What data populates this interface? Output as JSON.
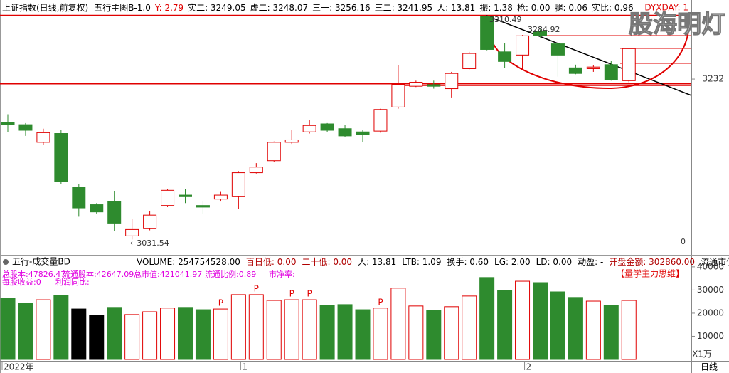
{
  "header": {
    "title": "上证指数(日线,前复权)",
    "indicator": "五行主图B-1.0",
    "stats": [
      {
        "text": "Y: 2.79",
        "color": "#e00000"
      },
      {
        "text": "实二: 3249.05",
        "color": "#000000"
      },
      {
        "text": "虚二: 3248.07",
        "color": "#000000"
      },
      {
        "text": "三一: 3256.16",
        "color": "#000000"
      },
      {
        "text": "三二: 3241.95",
        "color": "#000000"
      },
      {
        "text": "人: 13.81",
        "color": "#000000"
      },
      {
        "text": "振: 1.38",
        "color": "#000000"
      },
      {
        "text": "枪: 0.00",
        "color": "#000000"
      },
      {
        "text": "腿: 0.06",
        "color": "#000000"
      },
      {
        "text": "实比: 0.96",
        "color": "#000000"
      }
    ],
    "right_label": "DYXDAY: 1",
    "watermark": "股海明灯"
  },
  "chart_data": [
    {
      "type": "candlestick",
      "up_color": "#e00000",
      "down_color": "#2e8b2e",
      "open": [
        3178,
        3175,
        3153,
        3164,
        3097,
        3075,
        3079,
        3036,
        3045,
        3074,
        3087,
        3074,
        3082,
        3085,
        3115,
        3130,
        3153,
        3166,
        3176,
        3170,
        3166,
        3167,
        3197,
        3223,
        3225,
        3220,
        3245,
        3310,
        3266,
        3262,
        3292,
        3276,
        3246,
        3245,
        3250,
        3230
      ],
      "high": [
        3188,
        3177,
        3170,
        3168,
        3101,
        3077,
        3092,
        3057,
        3067,
        3095,
        3095,
        3080,
        3091,
        3117,
        3127,
        3154,
        3168,
        3181,
        3177,
        3175,
        3168,
        3195,
        3249,
        3230,
        3230,
        3241,
        3266,
        3310.49,
        3277,
        3287,
        3294,
        3279,
        3250,
        3249,
        3255,
        3271
      ],
      "low": [
        3166,
        3161,
        3150,
        3101,
        3060,
        3064,
        3042,
        3031.54,
        3043,
        3072,
        3077,
        3064,
        3079,
        3070,
        3114,
        3128,
        3151,
        3164,
        3166,
        3160,
        3153,
        3165,
        3195,
        3222,
        3220,
        3209,
        3244,
        3268,
        3246,
        3244,
        3284,
        3235,
        3238,
        3241,
        3230,
        3228
      ],
      "close": [
        3175,
        3168,
        3165,
        3104,
        3071,
        3066,
        3052,
        3044,
        3062,
        3093,
        3085,
        3072,
        3087,
        3115,
        3122,
        3153,
        3156,
        3174,
        3168,
        3161,
        3163,
        3194,
        3225,
        3228,
        3223,
        3239,
        3264,
        3269,
        3254,
        3286,
        3286,
        3262,
        3239,
        3247,
        3231,
        3270
      ],
      "ylim": [
        3015,
        3313
      ],
      "yticks": [
        3232
      ],
      "annotations": [
        "3310.49",
        "3284.92",
        "←3031.54",
        "0"
      ]
    },
    {
      "type": "bar",
      "title": "五行-成交量BD",
      "stats": [
        {
          "text": "VOLUME: 254754528.00",
          "color": "#000000"
        },
        {
          "text": "百日低: 0.00",
          "color": "#b00000"
        },
        {
          "text": "二十低: 0.00",
          "color": "#b00000"
        },
        {
          "text": "人: 13.81",
          "color": "#000000"
        },
        {
          "text": "LTB: 1.09",
          "color": "#000000"
        },
        {
          "text": "换手: 0.60",
          "color": "#000000"
        },
        {
          "text": "LG: 2.00",
          "color": "#000000"
        },
        {
          "text": "LD: 0.00",
          "color": "#000000"
        },
        {
          "text": "动盈: -",
          "color": "#000000"
        },
        {
          "text": "开盘金额: 302860.00",
          "color": "#b00000"
        },
        {
          "text": "流通市值: ",
          "color": "#000000"
        }
      ],
      "fundamentals": [
        [
          "总股本:47826.47",
          "流通股本:42647.09",
          "总市值:421041.97",
          "流通比例:0.89",
          "市净率:"
        ],
        [
          "每股收益:0",
          "利润同比:"
        ]
      ],
      "right_label": "【量学主力思维】",
      "categories": [
        "2022年",
        null,
        null,
        null,
        null,
        null,
        null,
        null,
        null,
        null,
        null,
        null,
        null,
        "1",
        null,
        null,
        null,
        null,
        null,
        null,
        null,
        null,
        null,
        null,
        null,
        null,
        null,
        null,
        null,
        "2",
        null,
        null,
        null,
        null,
        null,
        null
      ],
      "values": [
        26500,
        24300,
        25800,
        27700,
        21800,
        19100,
        22500,
        19400,
        20600,
        22200,
        22500,
        21500,
        21800,
        28000,
        28000,
        25500,
        25800,
        25800,
        23400,
        23700,
        21500,
        22200,
        30800,
        23100,
        21200,
        22800,
        27400,
        35400,
        29800,
        33800,
        33200,
        29200,
        26800,
        25200,
        23400,
        25500
      ],
      "colors": [
        "#2e8b2e",
        "#2e8b2e",
        "#e00000",
        "#2e8b2e",
        "#000000",
        "#000000",
        "#2e8b2e",
        "#e00000",
        "#e00000",
        "#e00000",
        "#2e8b2e",
        "#2e8b2e",
        "#e00000",
        "#e00000",
        "#e00000",
        "#e00000",
        "#e00000",
        "#e00000",
        "#2e8b2e",
        "#2e8b2e",
        "#2e8b2e",
        "#e00000",
        "#e00000",
        "#e00000",
        "#2e8b2e",
        "#e00000",
        "#e00000",
        "#2e8b2e",
        "#2e8b2e",
        "#e00000",
        "#2e8b2e",
        "#2e8b2e",
        "#2e8b2e",
        "#e00000",
        "#2e8b2e",
        "#e00000"
      ],
      "signals": [
        null,
        null,
        null,
        null,
        null,
        null,
        null,
        null,
        null,
        null,
        null,
        null,
        "P",
        null,
        "P",
        null,
        "P",
        "P",
        null,
        null,
        null,
        "P",
        null,
        null,
        null,
        null,
        null,
        null,
        null,
        null,
        null,
        null,
        null,
        null,
        null,
        null
      ],
      "ylim": [
        0,
        41500
      ],
      "yticks": [
        10000,
        20000,
        30000,
        40000
      ],
      "unit_label": "X1万",
      "period_label": "日线"
    }
  ]
}
